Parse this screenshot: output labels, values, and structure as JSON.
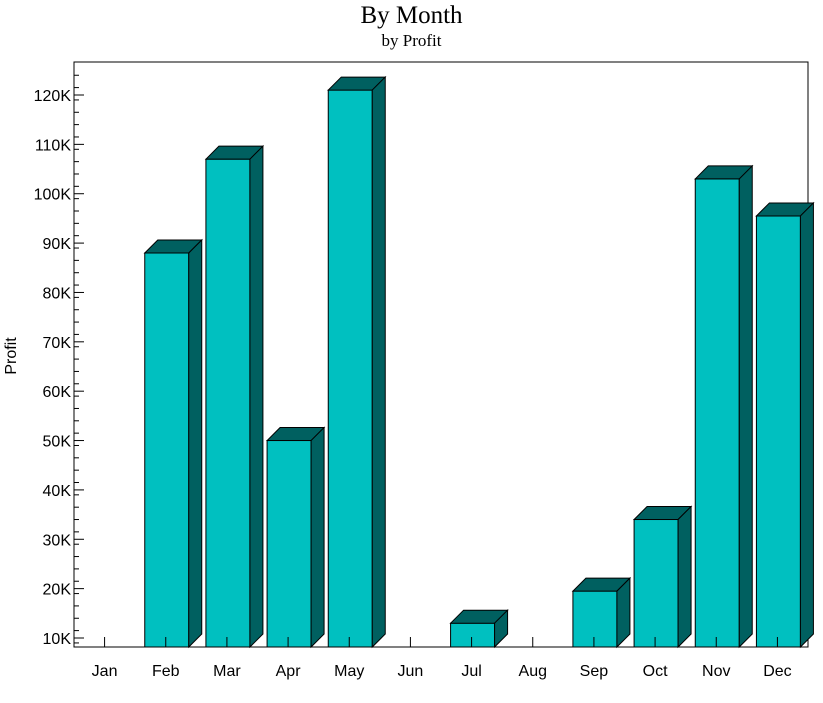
{
  "chart_data": {
    "type": "bar",
    "title": "By Month",
    "subtitle": "by Profit",
    "xlabel": "",
    "ylabel": "Profit",
    "categories": [
      "Jan",
      "Feb",
      "Mar",
      "Apr",
      "May",
      "Jun",
      "Jul",
      "Aug",
      "Sep",
      "Oct",
      "Nov",
      "Dec"
    ],
    "values": [
      null,
      88000,
      107000,
      50000,
      121000,
      null,
      13000,
      null,
      19500,
      34000,
      103000,
      95500
    ],
    "ylim": [
      8500,
      125000
    ],
    "yticks": [
      10000,
      20000,
      30000,
      40000,
      50000,
      60000,
      70000,
      80000,
      90000,
      100000,
      110000,
      120000
    ],
    "ytick_labels": [
      "10K",
      "20K",
      "30K",
      "40K",
      "50K",
      "60K",
      "70K",
      "80K",
      "90K",
      "100K",
      "110K",
      "120K"
    ],
    "grid": false,
    "legend": "none",
    "bar_color": "#00C0C0",
    "bar_side_color": "#006060"
  }
}
